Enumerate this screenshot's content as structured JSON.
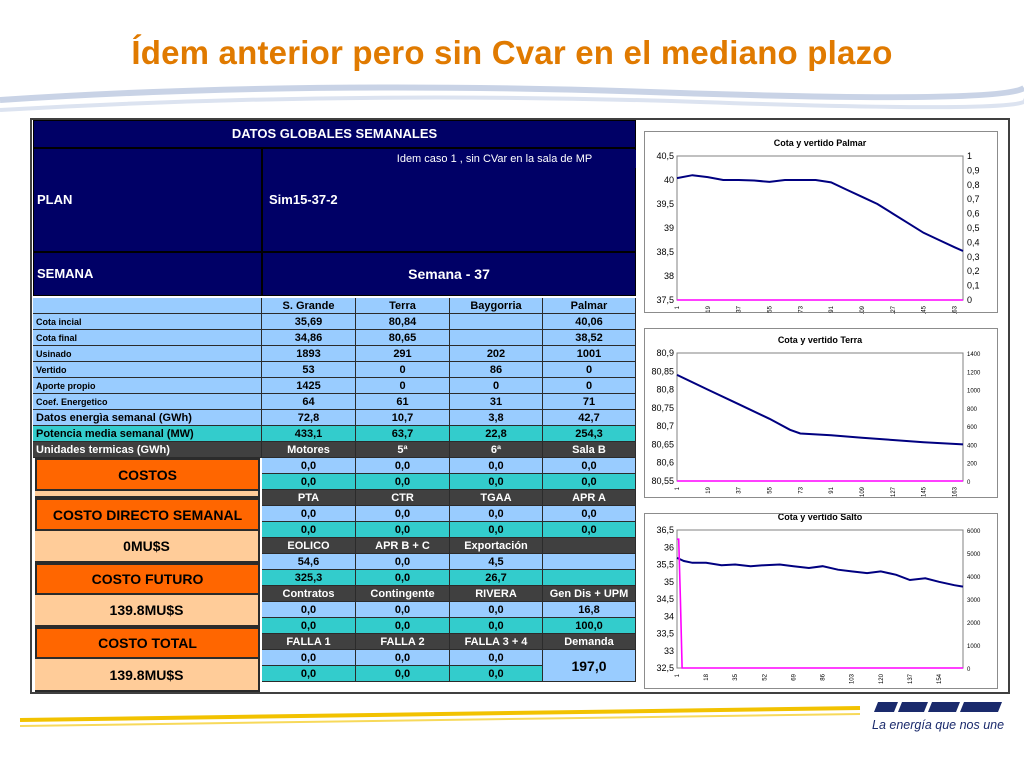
{
  "title": "Ídem anterior pero sin Cvar en el mediano plazo",
  "table": {
    "header": "DATOS GLOBALES SEMANALES",
    "plan_label": "PLAN",
    "plan_note": "Idem caso 1 , sin CVar en la sala de MP",
    "plan_value": "Sim15-37-2",
    "semana_label": "SEMANA",
    "semana_value": "Semana - 37",
    "columns": [
      "S. Grande",
      "Terra",
      "Baygorria",
      "Palmar"
    ],
    "rows": [
      {
        "label": "Cota incial",
        "values": [
          "35,69",
          "80,84",
          "",
          "40,06"
        ]
      },
      {
        "label": "Cota final",
        "values": [
          "34,86",
          "80,65",
          "",
          "38,52"
        ]
      },
      {
        "label": "Usinado",
        "values": [
          "1893",
          "291",
          "202",
          "1001"
        ]
      },
      {
        "label": "Vertido",
        "values": [
          "53",
          "0",
          "86",
          "0"
        ]
      },
      {
        "label": "Aporte propio",
        "values": [
          "1425",
          "0",
          "0",
          "0"
        ]
      },
      {
        "label": "Coef. Energetico",
        "values": [
          "64",
          "61",
          "31",
          "71"
        ]
      },
      {
        "label": "Datos energìa semanal  (GWh)",
        "values": [
          "72,8",
          "10,7",
          "3,8",
          "42,7"
        ]
      },
      {
        "label": "Potencia media semanal (MW)",
        "values": [
          "433,1",
          "63,7",
          "22,8",
          "254,3"
        ]
      }
    ],
    "termicas_label": "Unidades termicas (GWh)",
    "termicas_cols": [
      "Motores",
      "5ª",
      "6ª",
      "Sala B"
    ],
    "termicas_rows": [
      [
        "0,0",
        "0,0",
        "0,0",
        "0,0"
      ],
      [
        "0,0",
        "0,0",
        "0,0",
        "0,0"
      ]
    ],
    "costos_label": "COSTOS",
    "costo_directo_label": "COSTO DIRECTO SEMANAL",
    "costo_directo_value": "0MU$S",
    "costo_futuro_label": "COSTO FUTURO",
    "costo_futuro_value": "139.8MU$S",
    "costo_total_label": "COSTO TOTAL",
    "costo_total_value": "139.8MU$S",
    "g1_cols": [
      "PTA",
      "CTR",
      "TGAA",
      "APR A"
    ],
    "g1_rows": [
      [
        "0,0",
        "0,0",
        "0,0",
        "0,0"
      ],
      [
        "0,0",
        "0,0",
        "0,0",
        "0,0"
      ]
    ],
    "g2_cols": [
      "EOLICO",
      "APR B + C",
      "Exportación",
      ""
    ],
    "g2_rows": [
      [
        "54,6",
        "0,0",
        "4,5",
        ""
      ],
      [
        "325,3",
        "0,0",
        "26,7",
        ""
      ]
    ],
    "g3_cols": [
      "Contratos",
      "Contingente",
      "RIVERA",
      "Gen Dis + UPM"
    ],
    "g3_rows": [
      [
        "0,0",
        "0,0",
        "0,0",
        "16,8"
      ],
      [
        "0,0",
        "0,0",
        "0,0",
        "100,0"
      ]
    ],
    "g4_cols": [
      "FALLA 1",
      "FALLA 2",
      "FALLA 3 + 4",
      "Demanda"
    ],
    "g4_rows": [
      [
        "0,0",
        "0,0",
        "0,0"
      ],
      [
        "0,0",
        "0,0",
        "0,0"
      ]
    ],
    "demanda_value": "197,0"
  },
  "chart_data": [
    {
      "type": "line",
      "title": "Cota y vertido Palmar",
      "x_ticks": [
        "1",
        "19",
        "37",
        "55",
        "73",
        "91",
        "109",
        "127",
        "145",
        "163"
      ],
      "x_range": [
        1,
        168
      ],
      "y_ticks": [
        "40,5",
        "40",
        "39,5",
        "39",
        "38,5",
        "38",
        "37,5"
      ],
      "ylim": [
        37.5,
        40.5
      ],
      "y2_ticks": [
        "1",
        "0,9",
        "0,8",
        "0,7",
        "0,6",
        "0,5",
        "0,4",
        "0,3",
        "0,2",
        "0,1",
        "0"
      ],
      "y2lim": [
        0,
        1
      ],
      "series": [
        {
          "axis": "left",
          "color": "#000080",
          "x": [
            1,
            10,
            19,
            28,
            37,
            46,
            55,
            64,
            73,
            82,
            91,
            100,
            109,
            118,
            127,
            136,
            145,
            154,
            163,
            168
          ],
          "values": [
            40.04,
            40.1,
            40.06,
            40.0,
            40.0,
            39.99,
            39.96,
            40.0,
            40.0,
            40.0,
            39.95,
            39.8,
            39.65,
            39.5,
            39.3,
            39.1,
            38.9,
            38.75,
            38.6,
            38.52
          ]
        },
        {
          "axis": "right",
          "color": "#ff00ff",
          "x": [
            1,
            168
          ],
          "values": [
            0,
            0
          ]
        }
      ]
    },
    {
      "type": "line",
      "title": "Cota y vertido Terra",
      "x_ticks": [
        "1",
        "19",
        "37",
        "55",
        "73",
        "91",
        "109",
        "127",
        "145",
        "163"
      ],
      "x_range": [
        1,
        168
      ],
      "y_ticks": [
        "80,9",
        "80,85",
        "80,8",
        "80,75",
        "80,7",
        "80,65",
        "80,6",
        "80,55"
      ],
      "ylim": [
        80.55,
        80.9
      ],
      "y2_ticks": [
        "1400",
        "1200",
        "1000",
        "800",
        "600",
        "400",
        "200",
        "0"
      ],
      "y2lim": [
        0,
        1400
      ],
      "series": [
        {
          "axis": "left",
          "color": "#000080",
          "x": [
            1,
            19,
            37,
            55,
            67,
            73,
            91,
            109,
            127,
            145,
            168
          ],
          "values": [
            80.84,
            80.8,
            80.76,
            80.72,
            80.69,
            80.68,
            80.675,
            80.668,
            80.662,
            80.656,
            80.65
          ]
        },
        {
          "axis": "right",
          "color": "#ff00ff",
          "x": [
            1,
            168
          ],
          "values": [
            0,
            0
          ]
        }
      ]
    },
    {
      "type": "line",
      "title": "Cota y vertido Salto",
      "x_ticks": [
        "1",
        "18",
        "35",
        "52",
        "69",
        "86",
        "103",
        "120",
        "137",
        "154"
      ],
      "x_range": [
        1,
        168
      ],
      "y_ticks": [
        "36,5",
        "36",
        "35,5",
        "35",
        "34,5",
        "34",
        "33,5",
        "33",
        "32,5"
      ],
      "ylim": [
        32.5,
        36.5
      ],
      "y2_ticks": [
        "6000",
        "5000",
        "4000",
        "3000",
        "2000",
        "1000",
        "0"
      ],
      "y2lim": [
        0,
        6000
      ],
      "series": [
        {
          "axis": "left",
          "color": "#000080",
          "x": [
            1,
            5,
            10,
            18,
            27,
            35,
            44,
            52,
            61,
            69,
            78,
            86,
            95,
            103,
            112,
            120,
            129,
            137,
            146,
            154,
            163,
            168
          ],
          "values": [
            35.69,
            35.6,
            35.55,
            35.55,
            35.48,
            35.5,
            35.45,
            35.48,
            35.5,
            35.45,
            35.4,
            35.45,
            35.35,
            35.3,
            35.25,
            35.3,
            35.2,
            35.05,
            35.1,
            35.0,
            34.9,
            34.86
          ]
        },
        {
          "axis": "right",
          "color": "#ff00ff",
          "x": [
            1,
            2,
            3,
            4,
            5,
            6,
            7,
            168
          ],
          "values": [
            5600,
            5600,
            3000,
            0,
            0,
            0,
            0,
            0
          ]
        }
      ]
    }
  ]
}
